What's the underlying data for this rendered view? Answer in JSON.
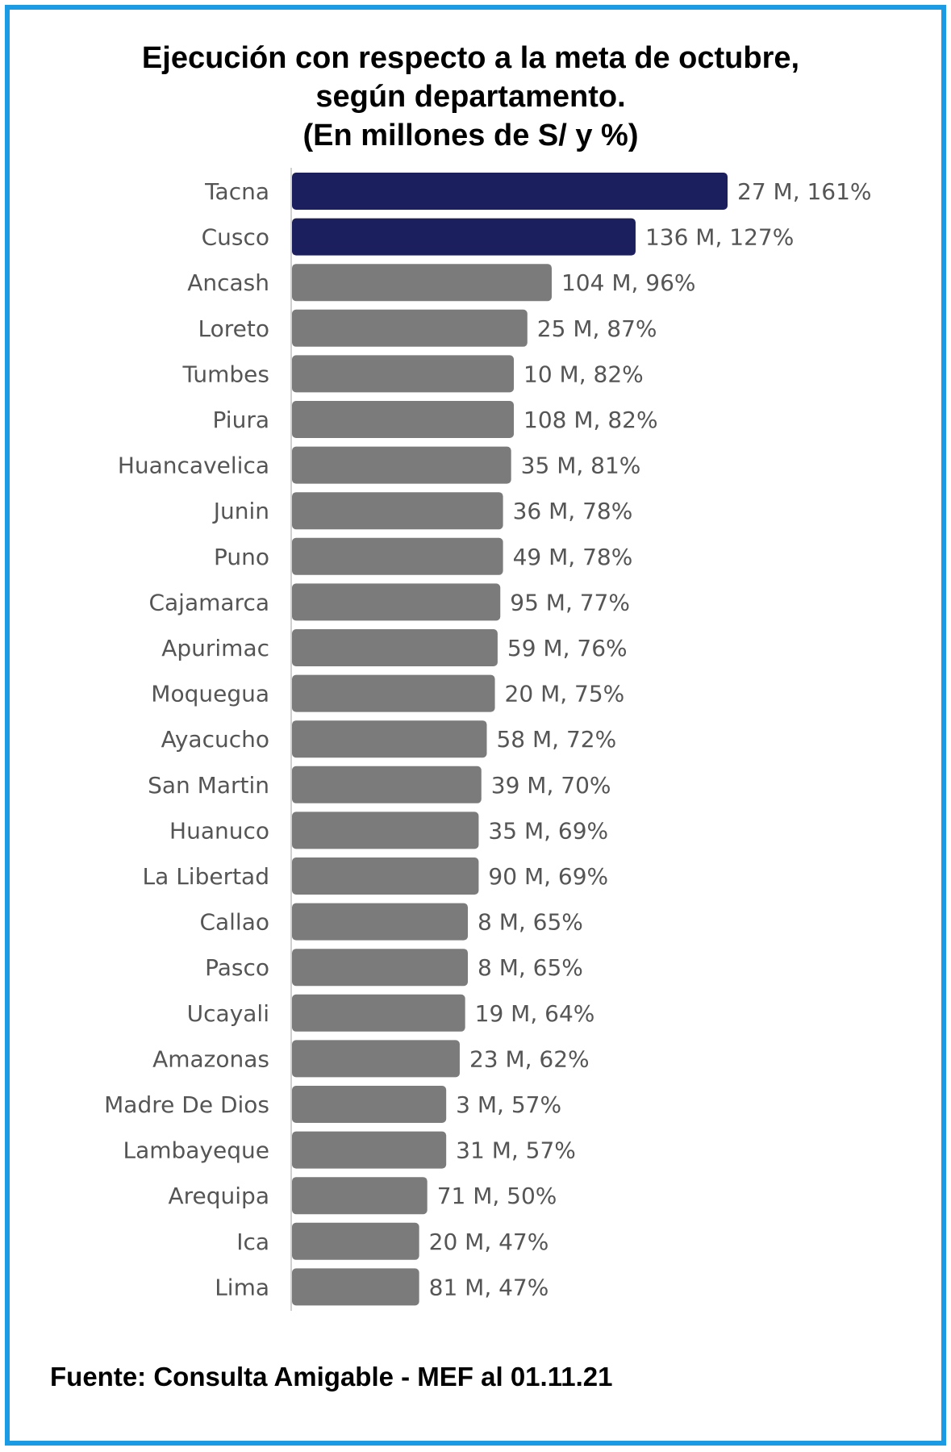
{
  "chart_data": {
    "type": "bar",
    "orientation": "horizontal",
    "title_lines": [
      "Ejecución con respecto a la meta de octubre,",
      "según departamento.",
      "(En millones de S/ y %)"
    ],
    "categories": [
      "Tacna",
      "Cusco",
      "Ancash",
      "Loreto",
      "Tumbes",
      "Piura",
      "Huancavelica",
      "Junin",
      "Puno",
      "Cajamarca",
      "Apurimac",
      "Moquegua",
      "Ayacucho",
      "San Martin",
      "Huanuco",
      "La Libertad",
      "Callao",
      "Pasco",
      "Ucayali",
      "Amazonas",
      "Madre De Dios",
      "Lambayeque",
      "Arequipa",
      "Ica",
      "Lima"
    ],
    "values": [
      161,
      127,
      96,
      87,
      82,
      82,
      81,
      78,
      78,
      77,
      76,
      75,
      72,
      70,
      69,
      69,
      65,
      65,
      64,
      62,
      57,
      57,
      50,
      47,
      47
    ],
    "data_labels": [
      "27 M, 161%",
      "136 M, 127%",
      "104 M, 96%",
      "25 M, 87%",
      "10 M, 82%",
      "108 M, 82%",
      "35 M, 81%",
      "36 M, 78%",
      "49 M, 78%",
      "95 M, 77%",
      "59 M, 76%",
      "20 M, 75%",
      "58 M, 72%",
      "39 M, 70%",
      "35 M, 69%",
      "90 M, 69%",
      "8 M, 65%",
      "8 M, 65%",
      "19 M, 64%",
      "23 M, 62%",
      "3 M, 57%",
      "31 M, 57%",
      "71 M, 50%",
      "20 M, 47%",
      "81 M, 47%"
    ],
    "highlighted": [
      "Tacna",
      "Cusco"
    ],
    "colors": {
      "highlight": "#1c1f5e",
      "default": "#7b7b7b",
      "axis": "#d0d0d0"
    },
    "xlim": [
      0,
      161
    ],
    "grid": false,
    "legend": "none"
  },
  "source": "Fuente: Consulta Amigable - MEF al 01.11.21"
}
